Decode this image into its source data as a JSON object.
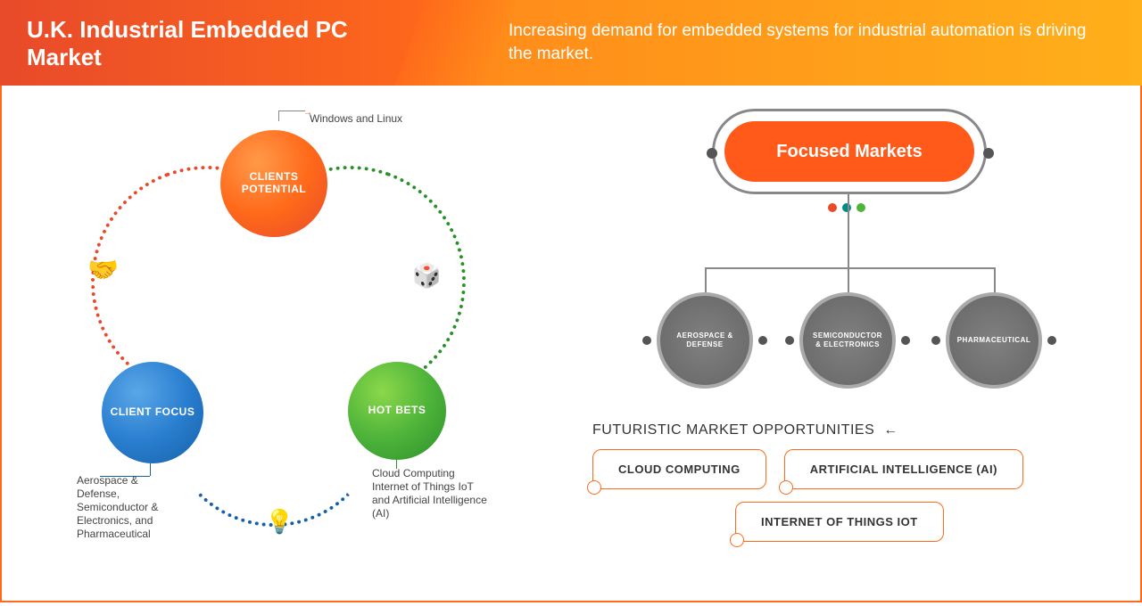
{
  "header": {
    "title": "U.K. Industrial Embedded PC Market",
    "subtitle": "Increasing demand for embedded systems for industrial automation is driving the market.",
    "gradient_left": [
      "#e84a2a",
      "#ff6a1a"
    ],
    "gradient_right": [
      "#ff8a1a",
      "#ffb01a"
    ]
  },
  "circle_diagram": {
    "nodes": {
      "top": {
        "label": "CLIENTS POTENTIAL",
        "color": "#ff6a1a",
        "annotation": "Windows and Linux"
      },
      "left": {
        "label": "CLIENT FOCUS",
        "color": "#2a7fd0",
        "annotation": "Aerospace & Defense, Semiconductor & Electronics, and Pharmaceutical"
      },
      "right": {
        "label": "HOT BETS",
        "color": "#4fb43a",
        "annotation": "Cloud Computing Internet of Things IoT and Artificial Intelligence (AI)"
      }
    },
    "arc_colors": {
      "top_right": "#2a902a",
      "top_left": "#e84a2a",
      "bottom": "#1660a8"
    },
    "icons": {
      "handshake": "🤝",
      "dice": "🎲",
      "bulb": "💡"
    }
  },
  "focused_markets": {
    "title": "Focused Markets",
    "pill_color": "#ff5a1a",
    "triad_colors": [
      "#e84a2a",
      "#008b8b",
      "#4fb43a"
    ],
    "items": [
      {
        "label": "AEROSPACE & DEFENSE"
      },
      {
        "label": "SEMICONDUCTOR & ELECTRONICS"
      },
      {
        "label": "PHARMACEUTICAL"
      }
    ],
    "node_color": "#707070"
  },
  "opportunities": {
    "title": "FUTURISTIC MARKET OPPORTUNITIES",
    "items": [
      "CLOUD COMPUTING",
      "ARTIFICIAL INTELLIGENCE (AI)",
      "INTERNET OF THINGS IOT"
    ],
    "border_color": "#ff6a1a"
  }
}
